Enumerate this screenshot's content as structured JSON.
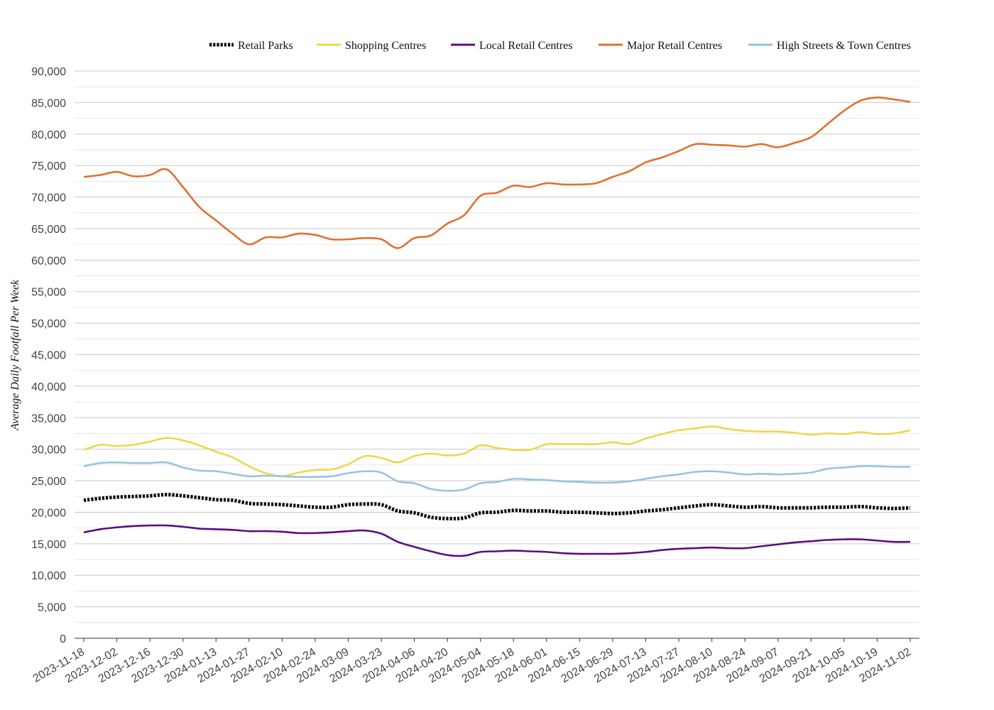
{
  "chart_data": {
    "type": "line",
    "title": "",
    "xlabel": "",
    "ylabel": "Average Daily Footfall Per Week",
    "ylim": [
      0,
      90000
    ],
    "yticks": [
      "0",
      "5,000",
      "10,000",
      "15,000",
      "20,000",
      "25,000",
      "30,000",
      "35,000",
      "40,000",
      "45,000",
      "50,000",
      "55,000",
      "60,000",
      "65,000",
      "70,000",
      "75,000",
      "80,000",
      "85,000",
      "90,000"
    ],
    "grid": true,
    "legend_position": "top",
    "x_tick_labels": [
      "2023-11-18",
      "2023-12-02",
      "2023-12-16",
      "2023-12-30",
      "2024-01-13",
      "2024-01-27",
      "2024-02-10",
      "2024-02-24",
      "2024-03-09",
      "2024-03-23",
      "2024-04-06",
      "2024-04-20",
      "2024-05-04",
      "2024-05-18",
      "2024-06-01",
      "2024-06-15",
      "2024-06-29",
      "2024-07-13",
      "2024-07-27",
      "2024-08-10",
      "2024-08-24",
      "2024-09-07",
      "2024-09-21",
      "2024-10-05",
      "2024-10-19",
      "2024-11-02"
    ],
    "x": [
      "2023-11-18",
      "2023-11-25",
      "2023-12-02",
      "2023-12-09",
      "2023-12-16",
      "2023-12-23",
      "2023-12-30",
      "2024-01-06",
      "2024-01-13",
      "2024-01-20",
      "2024-01-27",
      "2024-02-03",
      "2024-02-10",
      "2024-02-17",
      "2024-02-24",
      "2024-03-02",
      "2024-03-09",
      "2024-03-16",
      "2024-03-23",
      "2024-03-30",
      "2024-04-06",
      "2024-04-13",
      "2024-04-20",
      "2024-04-27",
      "2024-05-04",
      "2024-05-11",
      "2024-05-18",
      "2024-05-25",
      "2024-06-01",
      "2024-06-08",
      "2024-06-15",
      "2024-06-22",
      "2024-06-29",
      "2024-07-06",
      "2024-07-13",
      "2024-07-20",
      "2024-07-27",
      "2024-08-03",
      "2024-08-10",
      "2024-08-17",
      "2024-08-24",
      "2024-08-31",
      "2024-09-07",
      "2024-09-14",
      "2024-09-21",
      "2024-09-28",
      "2024-10-05",
      "2024-10-12",
      "2024-10-19",
      "2024-10-26",
      "2024-11-02"
    ],
    "series": [
      {
        "name": "Retail Parks",
        "color": "#000000",
        "dash": "dotted",
        "values": [
          21900,
          22200,
          22400,
          22500,
          22600,
          22800,
          22600,
          22300,
          22000,
          21900,
          21400,
          21300,
          21200,
          21000,
          20800,
          20800,
          21200,
          21300,
          21200,
          20200,
          19900,
          19200,
          19000,
          19100,
          19900,
          20000,
          20300,
          20200,
          20200,
          20000,
          20000,
          19900,
          19800,
          19900,
          20200,
          20400,
          20700,
          21000,
          21200,
          21000,
          20800,
          20900,
          20700,
          20700,
          20700,
          20800,
          20800,
          20900,
          20700,
          20600,
          20700
        ]
      },
      {
        "name": "Shopping Centres",
        "color": "#ead94c",
        "dash": "solid",
        "values": [
          29900,
          30700,
          30500,
          30700,
          31200,
          31800,
          31400,
          30600,
          29600,
          28700,
          27300,
          26200,
          25700,
          26300,
          26700,
          26800,
          27600,
          28900,
          28600,
          27900,
          28900,
          29300,
          29000,
          29300,
          30600,
          30200,
          29900,
          29900,
          30800,
          30800,
          30800,
          30800,
          31100,
          30800,
          31700,
          32400,
          33000,
          33300,
          33600,
          33200,
          32900,
          32800,
          32800,
          32600,
          32300,
          32500,
          32400,
          32700,
          32400,
          32500,
          33000
        ]
      },
      {
        "name": "Local Retail Centres",
        "color": "#5b0f7a",
        "dash": "solid",
        "values": [
          16800,
          17300,
          17600,
          17800,
          17900,
          17900,
          17700,
          17400,
          17300,
          17200,
          17000,
          17000,
          16900,
          16700,
          16700,
          16800,
          17000,
          17100,
          16600,
          15300,
          14500,
          13800,
          13200,
          13100,
          13700,
          13800,
          13900,
          13800,
          13700,
          13500,
          13400,
          13400,
          13400,
          13500,
          13700,
          14000,
          14200,
          14300,
          14400,
          14300,
          14300,
          14600,
          14900,
          15200,
          15400,
          15600,
          15700,
          15700,
          15500,
          15300,
          15300
        ]
      },
      {
        "name": "Major Retail Centres",
        "color": "#e07031",
        "dash": "solid",
        "values": [
          73200,
          73500,
          74000,
          73300,
          73500,
          74400,
          71600,
          68400,
          66300,
          64200,
          62500,
          63600,
          63600,
          64200,
          64000,
          63300,
          63300,
          63500,
          63300,
          61900,
          63500,
          63900,
          65800,
          67100,
          70200,
          70700,
          71800,
          71600,
          72200,
          72000,
          72000,
          72200,
          73200,
          74100,
          75500,
          76300,
          77300,
          78400,
          78300,
          78200,
          78000,
          78400,
          77900,
          78600,
          79500,
          81600,
          83700,
          85300,
          85800,
          85500,
          85100
        ]
      },
      {
        "name": "High Streets & Town Centres",
        "color": "#96c4e0",
        "dash": "solid",
        "values": [
          27300,
          27800,
          27900,
          27800,
          27800,
          27900,
          27100,
          26600,
          26500,
          26100,
          25700,
          25800,
          25700,
          25600,
          25600,
          25700,
          26200,
          26500,
          26300,
          24900,
          24600,
          23700,
          23400,
          23600,
          24600,
          24800,
          25300,
          25200,
          25100,
          24900,
          24800,
          24700,
          24700,
          24900,
          25300,
          25700,
          26000,
          26400,
          26500,
          26300,
          26000,
          26100,
          26000,
          26100,
          26300,
          26900,
          27100,
          27300,
          27300,
          27200,
          27200
        ]
      }
    ]
  }
}
